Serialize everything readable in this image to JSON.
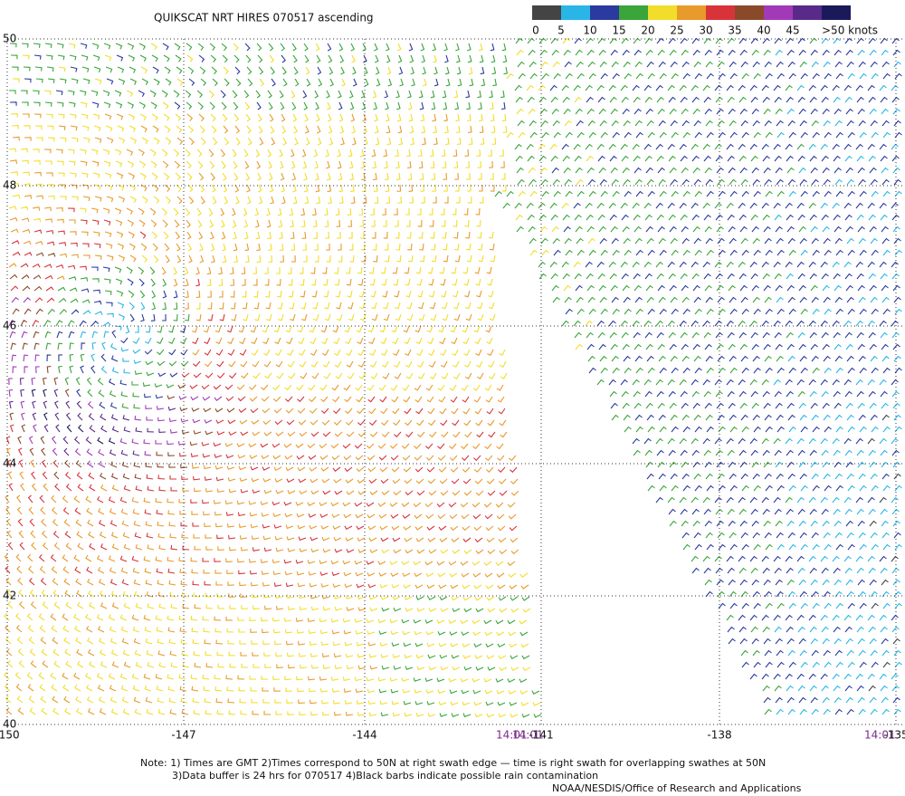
{
  "title": "QUIKSCAT NRT HIRES 070517 ascending",
  "colorbar": {
    "colors": [
      "#444444",
      "#29b6e6",
      "#2a3a9e",
      "#3aa53a",
      "#f2dd2a",
      "#e89a2a",
      "#d9333a",
      "#8a4a2a",
      "#a23ab8",
      "#5a2a8a",
      "#1a1a5a"
    ],
    "labels": [
      0,
      5,
      10,
      15,
      20,
      25,
      30,
      35,
      40,
      45,
      ">50 knots"
    ]
  },
  "lat_labels": [
    50,
    48,
    46,
    44,
    42,
    40
  ],
  "lon_labels": [
    -150,
    -147,
    -144,
    -141,
    -138,
    -135
  ],
  "times": [
    "14:01",
    "14:01",
    "14:01"
  ],
  "notes": [
    "Note: 1) Times are GMT 2)Times correspond to 50N at right swath edge — time is right swath for overlapping swathes at 50N",
    "3)Data buffer is 24 hrs for 070517 4)Black barbs indicate possible rain contamination",
    "NOAA/NESDIS/Office of Research and Applications"
  ]
}
